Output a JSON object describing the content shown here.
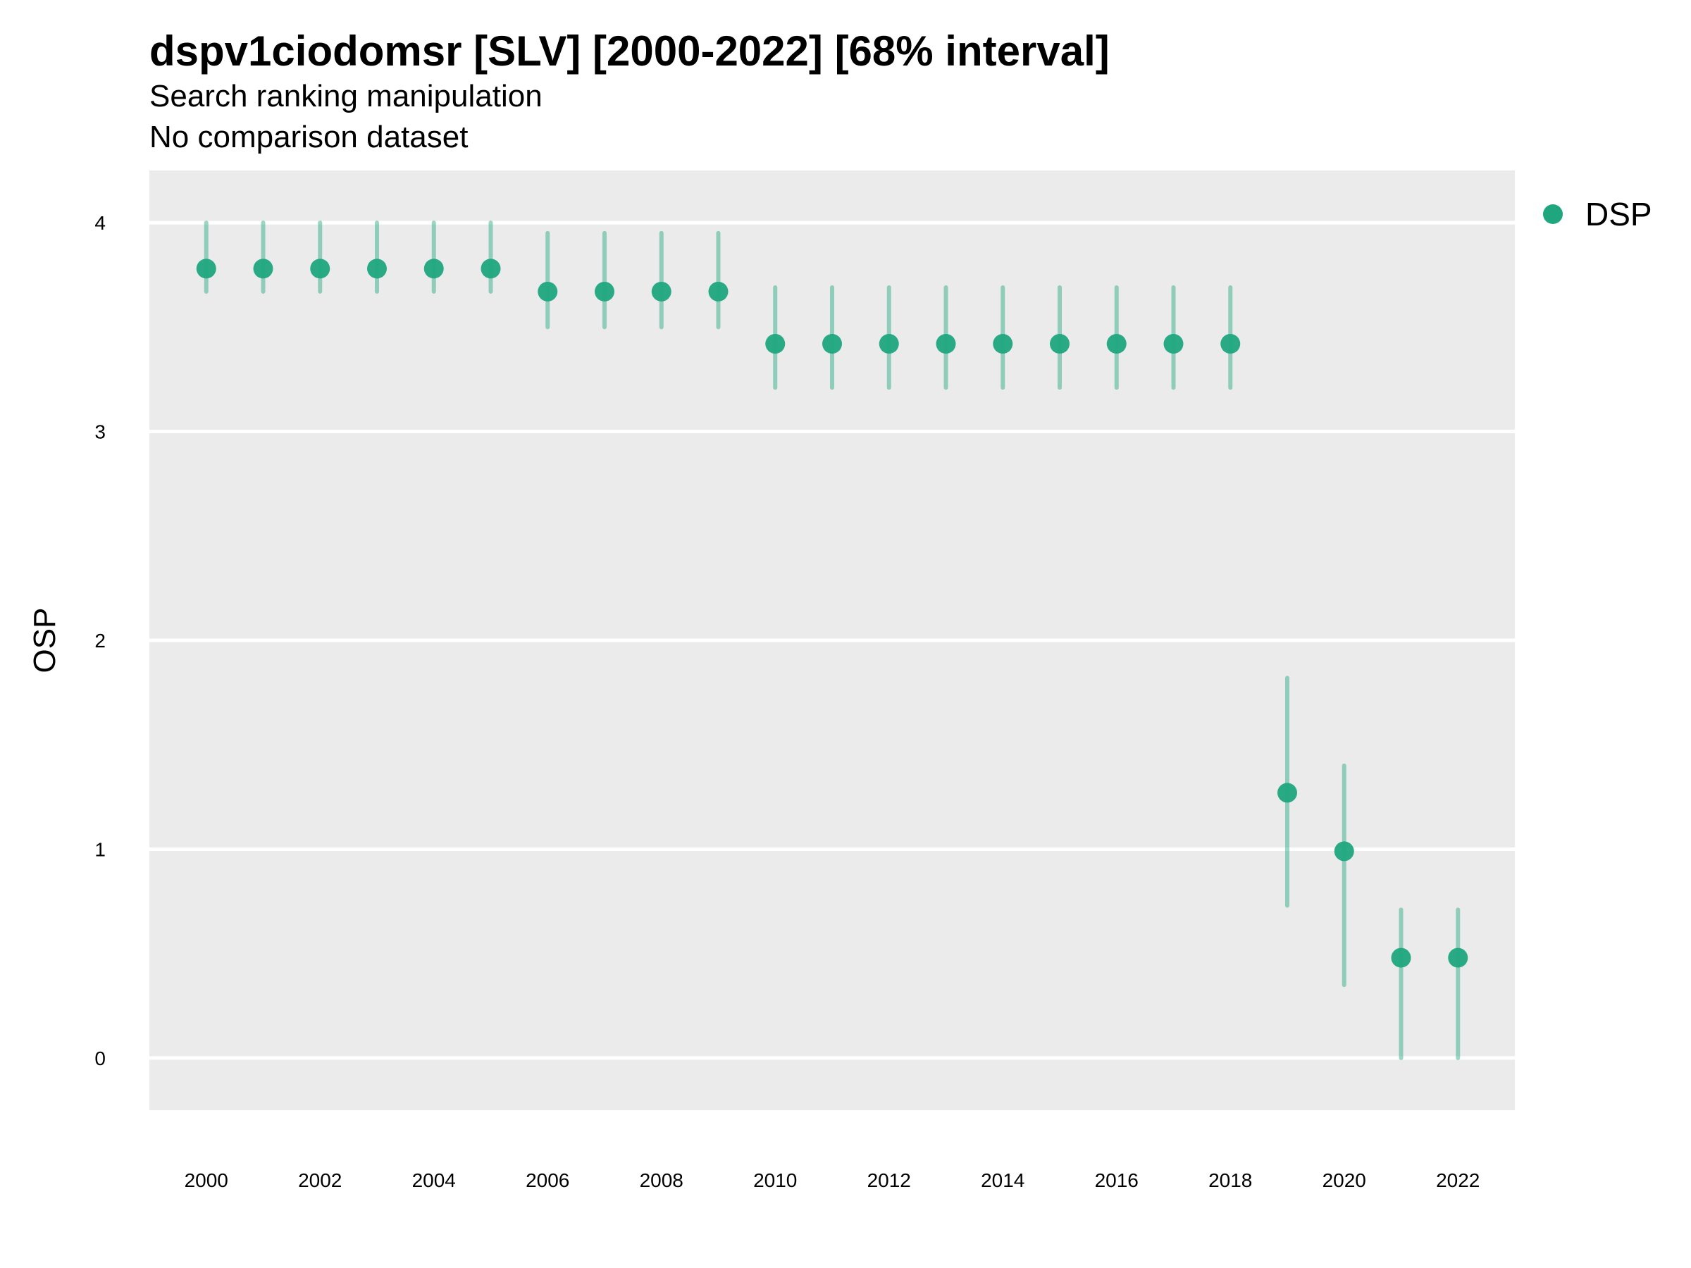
{
  "chart_data": {
    "type": "scatter",
    "title": "dspv1ciodomsr [SLV] [2000-2022] [68% interval]",
    "subtitle": [
      "Search ranking manipulation",
      "No comparison dataset"
    ],
    "xlabel": "",
    "ylabel": "OSP",
    "xlim": [
      1999,
      2023
    ],
    "ylim": [
      -0.25,
      4.25
    ],
    "x_ticks": [
      2000,
      2002,
      2004,
      2006,
      2008,
      2010,
      2012,
      2014,
      2016,
      2018,
      2020,
      2022
    ],
    "y_ticks": [
      0,
      1,
      2,
      3,
      4
    ],
    "grid": true,
    "legend_position": "right",
    "series": [
      {
        "name": "DSP",
        "color": "#1fa67f",
        "x": [
          2000,
          2001,
          2002,
          2003,
          2004,
          2005,
          2006,
          2007,
          2008,
          2009,
          2010,
          2011,
          2012,
          2013,
          2014,
          2015,
          2016,
          2017,
          2018,
          2019,
          2020,
          2021,
          2022
        ],
        "values": [
          3.78,
          3.78,
          3.78,
          3.78,
          3.78,
          3.78,
          3.67,
          3.67,
          3.67,
          3.67,
          3.42,
          3.42,
          3.42,
          3.42,
          3.42,
          3.42,
          3.42,
          3.42,
          3.42,
          1.27,
          0.99,
          0.48,
          0.48
        ],
        "lower": [
          3.67,
          3.67,
          3.67,
          3.67,
          3.67,
          3.67,
          3.5,
          3.5,
          3.5,
          3.5,
          3.21,
          3.21,
          3.21,
          3.21,
          3.21,
          3.21,
          3.21,
          3.21,
          3.21,
          0.73,
          0.35,
          0.0,
          0.0
        ],
        "upper": [
          4.0,
          4.0,
          4.0,
          4.0,
          4.0,
          4.0,
          3.95,
          3.95,
          3.95,
          3.95,
          3.69,
          3.69,
          3.69,
          3.69,
          3.69,
          3.69,
          3.69,
          3.69,
          3.69,
          1.82,
          1.4,
          0.71,
          0.71
        ]
      }
    ]
  }
}
